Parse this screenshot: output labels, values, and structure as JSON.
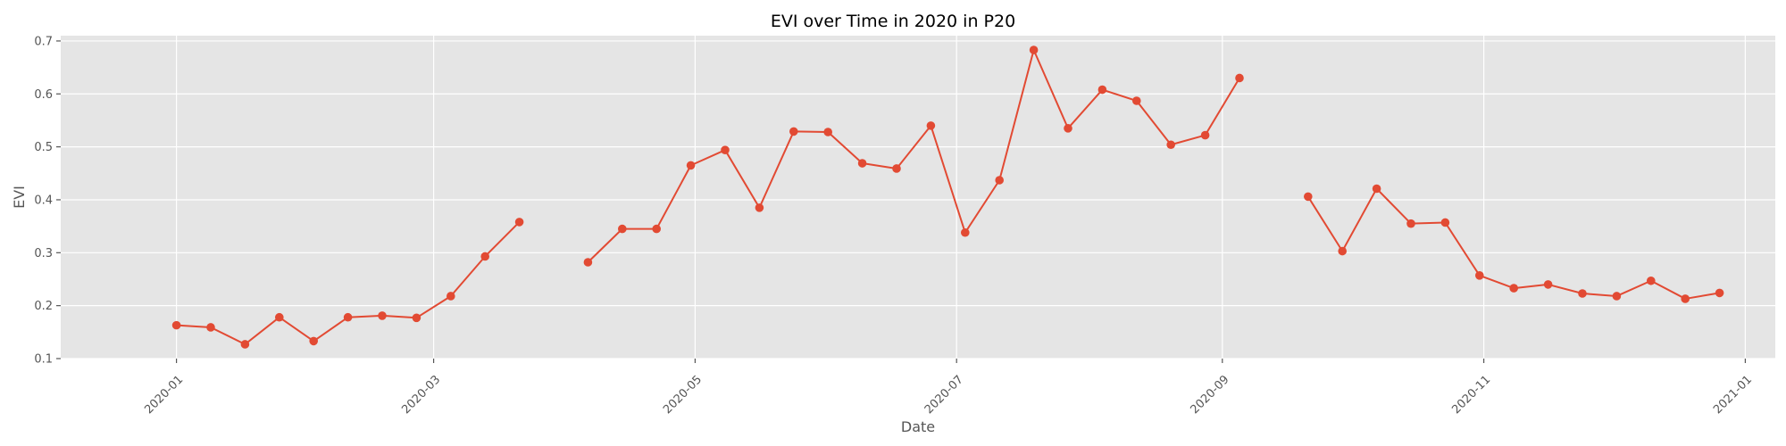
{
  "chart_data": {
    "type": "line",
    "title": "EVI over Time in 2020 in P20",
    "xlabel": "Date",
    "ylabel": "EVI",
    "x_axis": "date",
    "xlim": [
      "2019-12-05",
      "2021-01-08"
    ],
    "ylim": [
      0.1,
      0.71
    ],
    "x_ticks": [
      "2020-01-01",
      "2020-03-01",
      "2020-05-01",
      "2020-07-01",
      "2020-09-01",
      "2020-11-01",
      "2021-01-01"
    ],
    "x_tick_labels": [
      "2020-01",
      "2020-03",
      "2020-05",
      "2020-07",
      "2020-09",
      "2020-11",
      "2021-01"
    ],
    "y_ticks": [
      0.1,
      0.2,
      0.3,
      0.4,
      0.5,
      0.6,
      0.7
    ],
    "y_tick_labels": [
      "0.1",
      "0.2",
      "0.3",
      "0.4",
      "0.5",
      "0.6",
      "0.7"
    ],
    "grid": true,
    "style": "ggplot",
    "colors": {
      "line": "#E24A33",
      "background": "#E5E5E5",
      "grid": "#FFFFFF"
    },
    "series": [
      {
        "segments": [
          [
            {
              "x": "2020-01-01",
              "y": 0.163
            },
            {
              "x": "2020-01-09",
              "y": 0.159
            },
            {
              "x": "2020-01-17",
              "y": 0.127
            },
            {
              "x": "2020-01-25",
              "y": 0.178
            },
            {
              "x": "2020-02-02",
              "y": 0.133
            },
            {
              "x": "2020-02-10",
              "y": 0.178
            },
            {
              "x": "2020-02-18",
              "y": 0.181
            },
            {
              "x": "2020-02-26",
              "y": 0.177
            },
            {
              "x": "2020-03-05",
              "y": 0.218
            },
            {
              "x": "2020-03-13",
              "y": 0.293
            },
            {
              "x": "2020-03-21",
              "y": 0.358
            }
          ],
          [
            {
              "x": "2020-04-06",
              "y": 0.282
            },
            {
              "x": "2020-04-14",
              "y": 0.345
            },
            {
              "x": "2020-04-22",
              "y": 0.345
            },
            {
              "x": "2020-04-30",
              "y": 0.465
            },
            {
              "x": "2020-05-08",
              "y": 0.494
            },
            {
              "x": "2020-05-16",
              "y": 0.385
            },
            {
              "x": "2020-05-24",
              "y": 0.529
            },
            {
              "x": "2020-06-01",
              "y": 0.528
            },
            {
              "x": "2020-06-09",
              "y": 0.469
            },
            {
              "x": "2020-06-17",
              "y": 0.459
            },
            {
              "x": "2020-06-25",
              "y": 0.54
            },
            {
              "x": "2020-07-03",
              "y": 0.338
            },
            {
              "x": "2020-07-11",
              "y": 0.437
            },
            {
              "x": "2020-07-19",
              "y": 0.683
            },
            {
              "x": "2020-07-27",
              "y": 0.535
            },
            {
              "x": "2020-08-04",
              "y": 0.608
            },
            {
              "x": "2020-08-12",
              "y": 0.587
            },
            {
              "x": "2020-08-20",
              "y": 0.504
            },
            {
              "x": "2020-08-28",
              "y": 0.522
            },
            {
              "x": "2020-09-05",
              "y": 0.63
            }
          ],
          [
            {
              "x": "2020-09-21",
              "y": 0.406
            },
            {
              "x": "2020-09-29",
              "y": 0.303
            },
            {
              "x": "2020-10-07",
              "y": 0.421
            },
            {
              "x": "2020-10-15",
              "y": 0.355
            },
            {
              "x": "2020-10-23",
              "y": 0.357
            },
            {
              "x": "2020-10-31",
              "y": 0.257
            },
            {
              "x": "2020-11-08",
              "y": 0.233
            },
            {
              "x": "2020-11-16",
              "y": 0.24
            },
            {
              "x": "2020-11-24",
              "y": 0.223
            },
            {
              "x": "2020-12-02",
              "y": 0.218
            },
            {
              "x": "2020-12-10",
              "y": 0.247
            },
            {
              "x": "2020-12-18",
              "y": 0.213
            },
            {
              "x": "2020-12-26",
              "y": 0.224
            }
          ]
        ]
      }
    ]
  }
}
